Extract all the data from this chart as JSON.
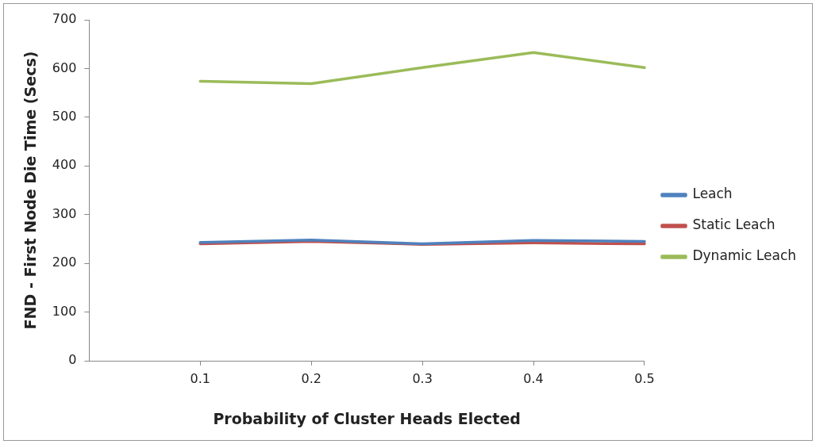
{
  "chart_data": {
    "type": "line",
    "xlabel": "Probability of Cluster Heads Elected",
    "ylabel": "FND - First Node Die Time (Secs)",
    "x": [
      0.1,
      0.2,
      0.3,
      0.4,
      0.5
    ],
    "xlim": [
      0,
      0.5
    ],
    "xticks": [
      0.1,
      0.2,
      0.3,
      0.4,
      0.5
    ],
    "ylim": [
      0,
      700
    ],
    "yticks": [
      0,
      100,
      200,
      300,
      400,
      500,
      600,
      700
    ],
    "grid": false,
    "legend": "right",
    "marker": "none",
    "series": [
      {
        "name": "Leach",
        "color": "#4f81bd",
        "values": [
          243,
          248,
          240,
          247,
          245
        ]
      },
      {
        "name": "Static Leach",
        "color": "#c0504d",
        "values": [
          240,
          245,
          239,
          242,
          240
        ]
      },
      {
        "name": "Dynamic Leach",
        "color": "#9bbb59",
        "values": [
          574,
          569,
          602,
          633,
          602
        ]
      }
    ]
  }
}
